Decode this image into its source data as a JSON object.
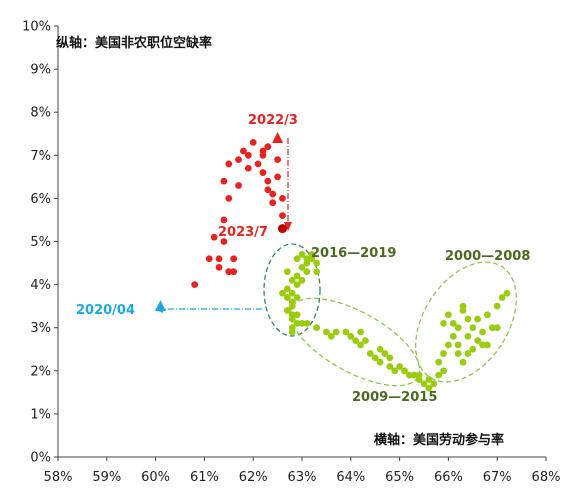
{
  "chart_data": {
    "type": "scatter",
    "title": "",
    "ylabel": "纵轴：美国非农职位空缺率",
    "xlabel": "横轴：美国劳动参与率",
    "xlim": [
      58,
      68
    ],
    "ylim": [
      0,
      10
    ],
    "x_ticks": [
      "58%",
      "59%",
      "60%",
      "61%",
      "62%",
      "63%",
      "64%",
      "65%",
      "66%",
      "67%",
      "68%"
    ],
    "y_ticks": [
      "0%",
      "1%",
      "2%",
      "3%",
      "4%",
      "5%",
      "6%",
      "7%",
      "8%",
      "9%",
      "10%"
    ],
    "grid": false,
    "series": [
      {
        "color": "#e8231f",
        "marker": "circle",
        "points": [
          [
            60.8,
            4.0
          ],
          [
            61.1,
            4.6
          ],
          [
            61.2,
            5.1
          ],
          [
            61.3,
            4.4
          ],
          [
            61.3,
            4.6
          ],
          [
            61.4,
            5.5
          ],
          [
            61.4,
            5.0
          ],
          [
            61.5,
            4.3
          ],
          [
            61.6,
            4.6
          ],
          [
            61.4,
            6.4
          ],
          [
            61.5,
            6.0
          ],
          [
            61.5,
            6.8
          ],
          [
            61.7,
            6.3
          ],
          [
            61.7,
            6.9
          ],
          [
            61.8,
            7.1
          ],
          [
            61.9,
            7.0
          ],
          [
            61.9,
            6.7
          ],
          [
            62.0,
            7.3
          ],
          [
            62.1,
            6.8
          ],
          [
            62.2,
            6.6
          ],
          [
            62.2,
            7.0
          ],
          [
            62.3,
            7.2
          ],
          [
            62.3,
            6.4
          ],
          [
            62.4,
            6.1
          ],
          [
            62.5,
            6.9
          ],
          [
            62.5,
            6.5
          ],
          [
            62.6,
            6.0
          ],
          [
            62.6,
            5.6
          ],
          [
            62.4,
            5.9
          ],
          [
            62.3,
            6.2
          ],
          [
            62.2,
            7.1
          ],
          [
            61.6,
            4.3
          ]
        ]
      },
      {
        "color": "#9acd10",
        "marker": "circle",
        "points": [
          [
            62.8,
            3.2
          ],
          [
            62.7,
            3.4
          ],
          [
            62.8,
            3.5
          ],
          [
            62.7,
            3.7
          ],
          [
            62.8,
            3.6
          ],
          [
            62.9,
            3.7
          ],
          [
            62.7,
            3.9
          ],
          [
            62.8,
            3.8
          ],
          [
            62.6,
            3.8
          ],
          [
            62.9,
            4.0
          ],
          [
            62.8,
            4.1
          ],
          [
            62.7,
            4.3
          ],
          [
            62.9,
            4.2
          ],
          [
            63.0,
            4.4
          ],
          [
            63.1,
            4.5
          ],
          [
            62.9,
            4.6
          ],
          [
            63.0,
            4.7
          ],
          [
            63.2,
            4.6
          ],
          [
            63.0,
            4.1
          ],
          [
            63.3,
            4.3
          ],
          [
            63.1,
            4.3
          ],
          [
            62.9,
            3.3
          ],
          [
            63.0,
            3.1
          ],
          [
            62.8,
            3.0
          ],
          [
            63.2,
            4.7
          ],
          [
            63.3,
            4.5
          ],
          [
            63.1,
            4.6
          ],
          [
            62.8,
            3.3
          ],
          [
            62.9,
            3.1
          ],
          [
            62.8,
            2.9
          ],
          [
            63.1,
            3.1
          ],
          [
            63.3,
            3.0
          ],
          [
            63.5,
            2.9
          ],
          [
            63.7,
            2.9
          ],
          [
            63.9,
            2.9
          ],
          [
            64.0,
            2.8
          ],
          [
            64.1,
            2.7
          ],
          [
            64.2,
            2.6
          ],
          [
            64.3,
            2.7
          ],
          [
            64.4,
            2.4
          ],
          [
            64.5,
            2.3
          ],
          [
            64.6,
            2.2
          ],
          [
            64.7,
            2.4
          ],
          [
            64.8,
            2.1
          ],
          [
            64.9,
            2.0
          ],
          [
            65.0,
            2.1
          ],
          [
            65.1,
            2.0
          ],
          [
            65.2,
            1.9
          ],
          [
            65.3,
            1.9
          ],
          [
            65.4,
            1.8
          ],
          [
            65.5,
            1.7
          ],
          [
            65.6,
            1.8
          ],
          [
            65.7,
            1.7
          ],
          [
            65.8,
            1.9
          ],
          [
            65.6,
            1.6
          ],
          [
            65.4,
            1.9
          ],
          [
            64.2,
            2.9
          ],
          [
            64.6,
            2.5
          ],
          [
            63.6,
            2.8
          ],
          [
            64.8,
            2.3
          ],
          [
            65.8,
            2.2
          ],
          [
            65.9,
            2.4
          ],
          [
            65.9,
            3.1
          ],
          [
            66.0,
            2.6
          ],
          [
            66.0,
            3.3
          ],
          [
            66.1,
            2.8
          ],
          [
            66.1,
            3.1
          ],
          [
            66.2,
            2.4
          ],
          [
            66.2,
            2.6
          ],
          [
            66.3,
            3.4
          ],
          [
            66.3,
            2.2
          ],
          [
            66.4,
            3.2
          ],
          [
            66.4,
            2.8
          ],
          [
            66.5,
            3.0
          ],
          [
            66.5,
            2.5
          ],
          [
            66.6,
            2.7
          ],
          [
            66.6,
            3.2
          ],
          [
            66.7,
            2.9
          ],
          [
            66.8,
            3.3
          ],
          [
            66.8,
            2.6
          ],
          [
            66.9,
            3.0
          ],
          [
            67.0,
            3.5
          ],
          [
            67.1,
            3.7
          ],
          [
            67.2,
            3.8
          ],
          [
            67.0,
            3.0
          ],
          [
            66.2,
            3.0
          ],
          [
            66.4,
            2.4
          ],
          [
            66.7,
            2.6
          ],
          [
            65.9,
            2.0
          ],
          [
            66.3,
            3.5
          ]
        ]
      }
    ],
    "highlights": [
      {
        "label": "2022/3",
        "x": 62.5,
        "y": 7.4,
        "marker": "triangle",
        "color": "#e8231f"
      },
      {
        "label": "2023/7",
        "x": 62.6,
        "y": 5.3,
        "marker": "circle",
        "color": "#c00000"
      },
      {
        "label": "2020/04",
        "x": 60.1,
        "y": 3.5,
        "marker": "triangle",
        "color": "#1da9e0"
      }
    ],
    "annotations": [
      {
        "text": "2016—2019",
        "color": "#4a6b1f",
        "position": "upper-right of cluster"
      },
      {
        "text": "2009—2015",
        "color": "#4a6b1f",
        "position": "below middle cluster"
      },
      {
        "text": "2000—2008",
        "color": "#4a6b1f",
        "position": "above right cluster"
      }
    ]
  }
}
